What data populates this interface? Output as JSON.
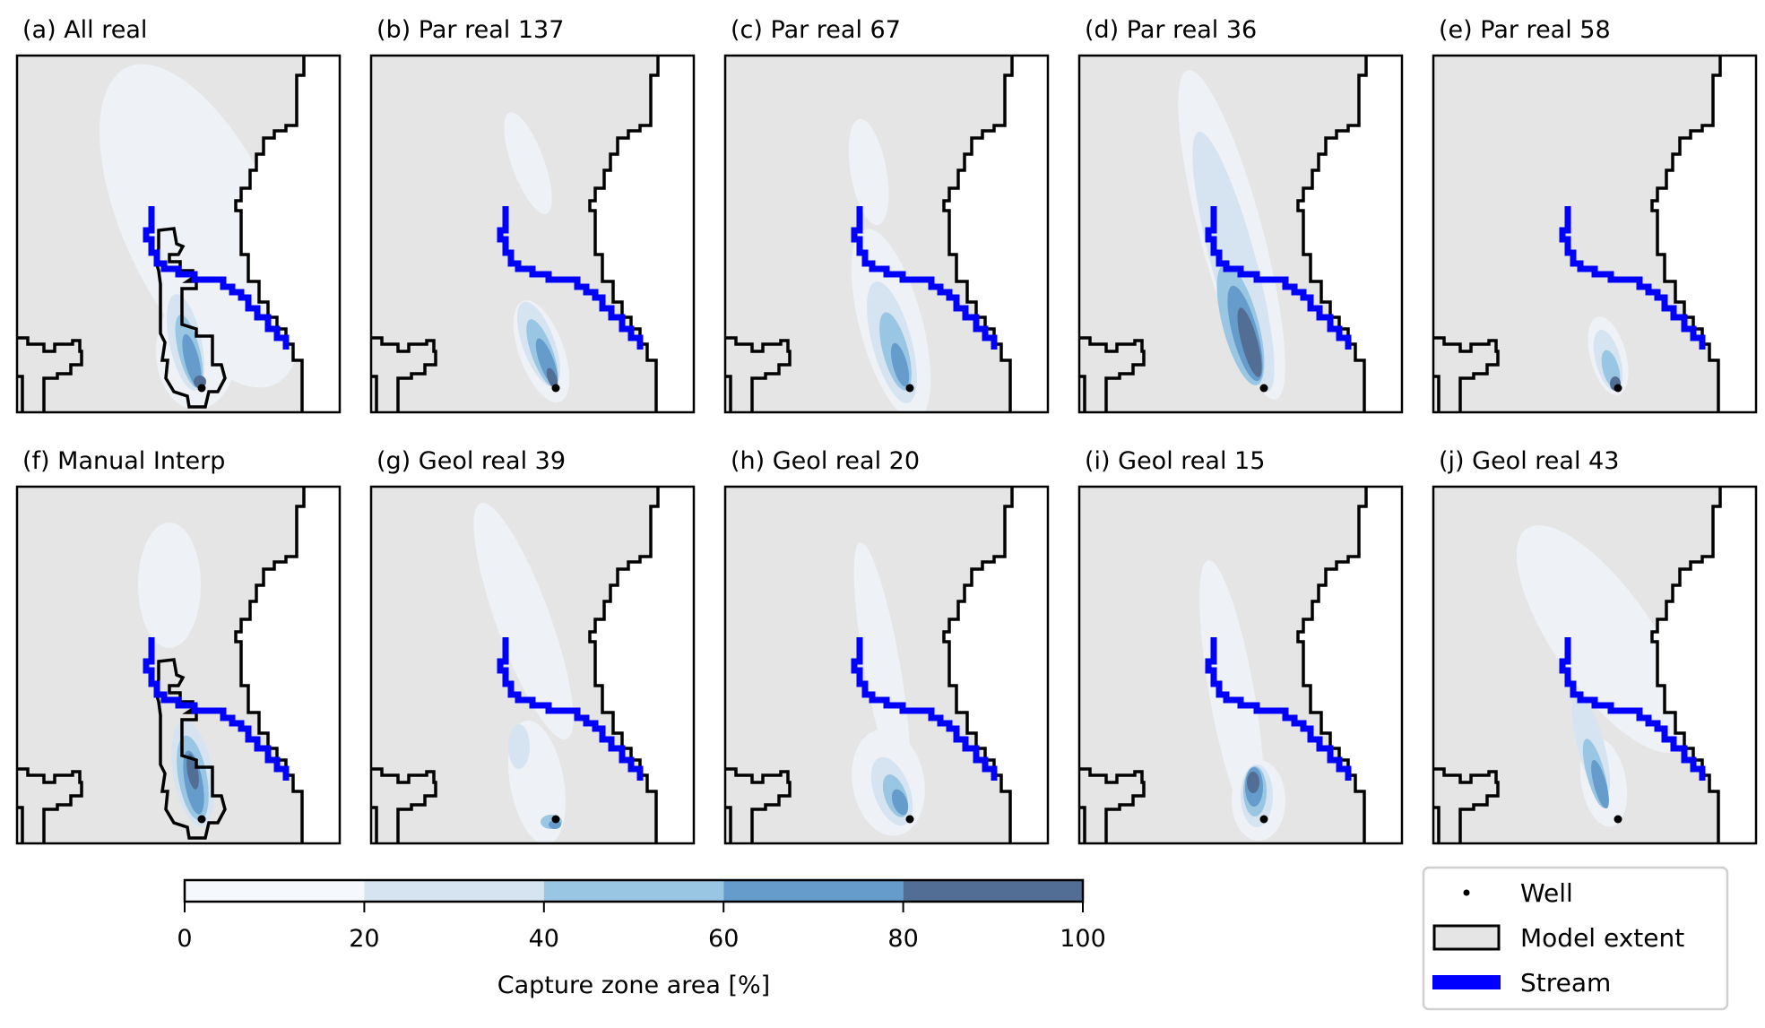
{
  "chart_data": {
    "type": "heatmap",
    "panels": [
      {
        "title": "(a) All real"
      },
      {
        "title": "(b) Par real 137"
      },
      {
        "title": "(c) Par real 67"
      },
      {
        "title": "(d) Par real 36"
      },
      {
        "title": "(e) Par real 58"
      },
      {
        "title": "(f) Manual Interp"
      },
      {
        "title": "(g) Geol real 39"
      },
      {
        "title": "(h) Geol real 20"
      },
      {
        "title": "(i) Geol real 15"
      },
      {
        "title": "(j) Geol real 43"
      }
    ],
    "colorbar": {
      "label": "Capture zone area [%]",
      "range": [
        0,
        100
      ],
      "ticks": [
        "0",
        "20",
        "40",
        "60",
        "80",
        "100"
      ],
      "bins": [
        {
          "from": 0,
          "to": 20,
          "color": "#f5f9fd"
        },
        {
          "from": 20,
          "to": 40,
          "color": "#d6e4f1"
        },
        {
          "from": 40,
          "to": 60,
          "color": "#99c6e2"
        },
        {
          "from": 60,
          "to": 80,
          "color": "#659ccb"
        },
        {
          "from": 80,
          "to": 100,
          "color": "#536e95"
        }
      ],
      "orientation": "horizontal",
      "placement": "bottom-left"
    },
    "legend": {
      "placement": "bottom-right",
      "entries": [
        {
          "label": "Well",
          "symbol": "dot",
          "color": "#000000"
        },
        {
          "label": "Model extent",
          "symbol": "patch",
          "color": "#e5e5e5"
        },
        {
          "label": "Stream",
          "symbol": "line",
          "color": "#0000ff"
        }
      ]
    },
    "colors": {
      "model_extent": "#e5e5e5",
      "stream": "#0000ff",
      "outside": "#ffffff"
    }
  }
}
